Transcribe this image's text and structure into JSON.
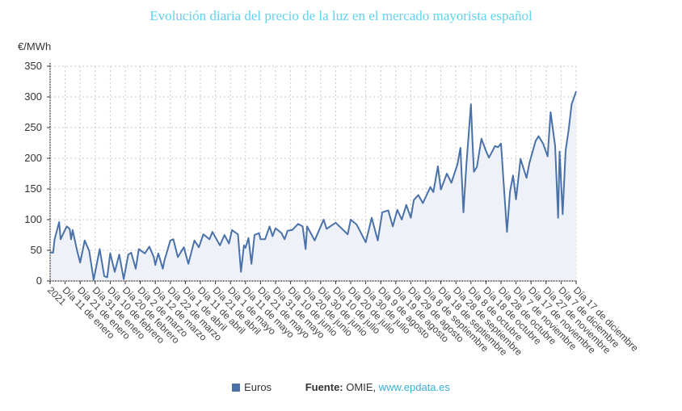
{
  "chart_data": {
    "type": "area",
    "title": "Evolución diaria del precio de la luz en el mercado mayorista español",
    "ylabel": "€/MWh",
    "xlabel": "",
    "ylim": [
      0,
      350
    ],
    "yticks": [
      0,
      50,
      100,
      150,
      200,
      250,
      300,
      350
    ],
    "grid": true,
    "legend_position": "bottom",
    "xtick_labels": [
      "2021",
      "Día 11 de enero",
      "Día 21 de enero",
      "Día 31 de enero",
      "Día 10 de febrero",
      "Día 20 de febrero",
      "Día 2 de marzo",
      "Día 12 de marzo",
      "Día 22 de marzo",
      "Día 1 de abril",
      "Día 11 de abril",
      "Día 21 de abril",
      "Día 1 de mayo",
      "Día 11 de mayo",
      "Día 21 de mayo",
      "Día 31 de mayo",
      "Día 10 de junio",
      "Día 20 de junio",
      "Día 30 de junio",
      "Día 10 de julio",
      "Día 20 de julio",
      "Día 30 de julio",
      "Día 9 de agosto",
      "Día 19 de agosto",
      "Día 29 de agosto",
      "Día 8 de septiembre",
      "Día 18 de septiembre",
      "Día 28 de septiembre",
      "Día 8 de octubre",
      "Día 18 de octubre",
      "Día 28 de octubre",
      "Día 7 de noviembre",
      "Día 17 de noviembre",
      "Día 27 de noviembre",
      "Día 7 de diciembre",
      "Día 17 de diciembre"
    ],
    "x_days_since_jan1": [
      0,
      2,
      3,
      6,
      7,
      11,
      13,
      14,
      15,
      18,
      20,
      23,
      26,
      29,
      33,
      36,
      38,
      40,
      43,
      46,
      49,
      52,
      54,
      57,
      59,
      63,
      66,
      69,
      70,
      72,
      75,
      76,
      80,
      82,
      85,
      89,
      92,
      96,
      99,
      102,
      106,
      108,
      113,
      116,
      119,
      121,
      125,
      127,
      129,
      130,
      132,
      134,
      136,
      139,
      140,
      143,
      146,
      148,
      150,
      154,
      156,
      158,
      161,
      165,
      168,
      170,
      171,
      176,
      182,
      184,
      190,
      198,
      200,
      204,
      210,
      214,
      218,
      221,
      225,
      228,
      231,
      234,
      237,
      240,
      242,
      245,
      248,
      253,
      255,
      258,
      260,
      264,
      267,
      271,
      273,
      275,
      277,
      280,
      281,
      282,
      284,
      287,
      290,
      292,
      296,
      298,
      300,
      304,
      306,
      308,
      310,
      313,
      317,
      319,
      323,
      325,
      328,
      331,
      333,
      336,
      338,
      339,
      341,
      343,
      345,
      347,
      350
    ],
    "series": [
      {
        "name": "Euros",
        "color": "#4a72a8",
        "values": [
          47,
          46,
          68,
          96,
          68,
          89,
          85,
          68,
          83,
          49,
          30,
          66,
          49,
          2,
          52,
          8,
          6,
          45,
          15,
          43,
          3,
          43,
          46,
          20,
          52,
          45,
          56,
          39,
          26,
          45,
          20,
          33,
          66,
          68,
          39,
          55,
          28,
          66,
          55,
          76,
          68,
          80,
          58,
          75,
          61,
          83,
          76,
          15,
          58,
          54,
          70,
          28,
          75,
          78,
          68,
          68,
          89,
          73,
          86,
          78,
          68,
          82,
          83,
          93,
          89,
          52,
          89,
          66,
          100,
          85,
          95,
          76,
          100,
          92,
          63,
          103,
          66,
          112,
          115,
          89,
          116,
          100,
          124,
          103,
          132,
          140,
          127,
          153,
          145,
          187,
          149,
          175,
          160,
          190,
          217,
          112,
          190,
          288,
          228,
          178,
          186,
          232,
          212,
          201,
          220,
          218,
          224,
          80,
          146,
          172,
          133,
          199,
          168,
          193,
          228,
          236,
          224,
          203,
          275,
          220,
          103,
          211,
          109,
          213,
          246,
          288,
          309
        ]
      }
    ]
  },
  "legend": {
    "series_label": "Euros",
    "source_label": "Fuente:",
    "source_name": "OMIE, ",
    "source_link": "www.epdata.es"
  }
}
